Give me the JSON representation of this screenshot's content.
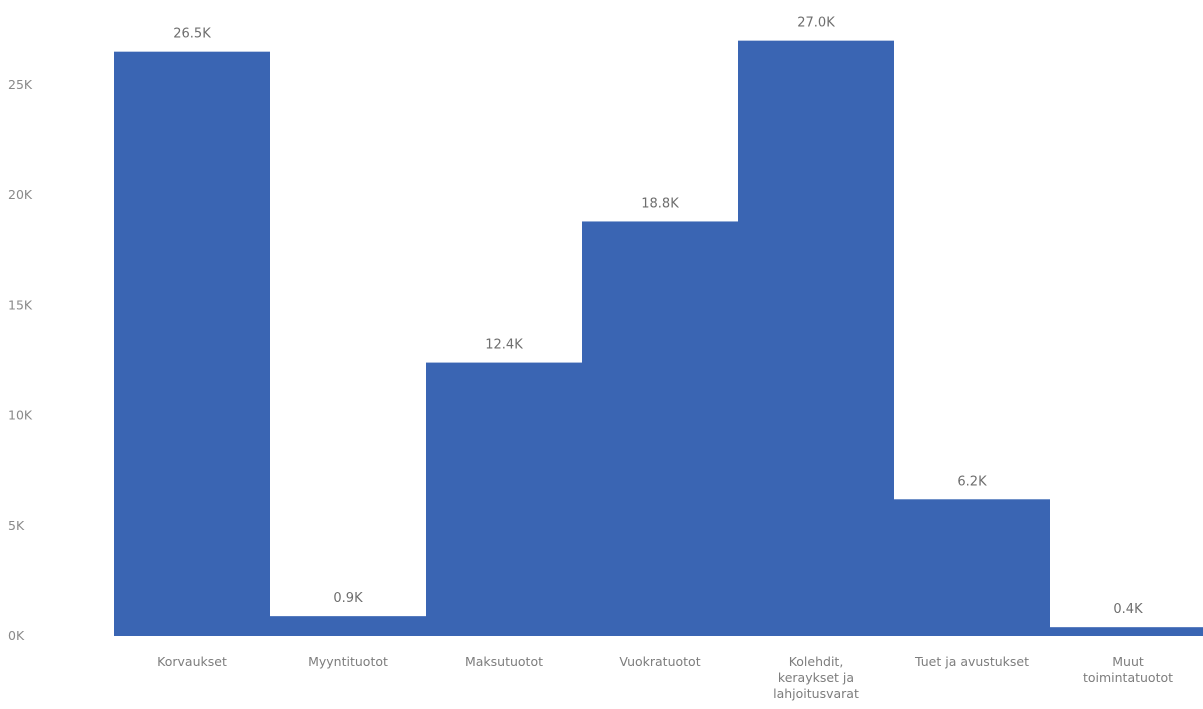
{
  "chart_data": {
    "type": "bar",
    "categories": [
      [
        "Korvaukset"
      ],
      [
        "Myyntituotot"
      ],
      [
        "Maksutuotot"
      ],
      [
        "Vuokratuotot"
      ],
      [
        "Kolehdit,",
        "keraykset ja",
        "lahjoitusvarat"
      ],
      [
        "Tuet ja avustukset"
      ],
      [
        "Muut",
        "toimintatuotot"
      ]
    ],
    "values": [
      26.5,
      0.9,
      12.4,
      18.8,
      27.0,
      6.2,
      0.4
    ],
    "value_labels": [
      "26.5K",
      "0.9K",
      "12.4K",
      "18.8K",
      "27.0K",
      "6.2K",
      "0.4K"
    ],
    "y_ticks": [
      0,
      5,
      10,
      15,
      20,
      25
    ],
    "y_tick_labels": [
      "0K",
      "5K",
      "10K",
      "15K",
      "20K",
      "25K"
    ],
    "ylim": [
      0,
      27.0
    ],
    "title": "",
    "xlabel": "",
    "ylabel": "",
    "grid": false,
    "bar_color": "#3a65b3"
  }
}
